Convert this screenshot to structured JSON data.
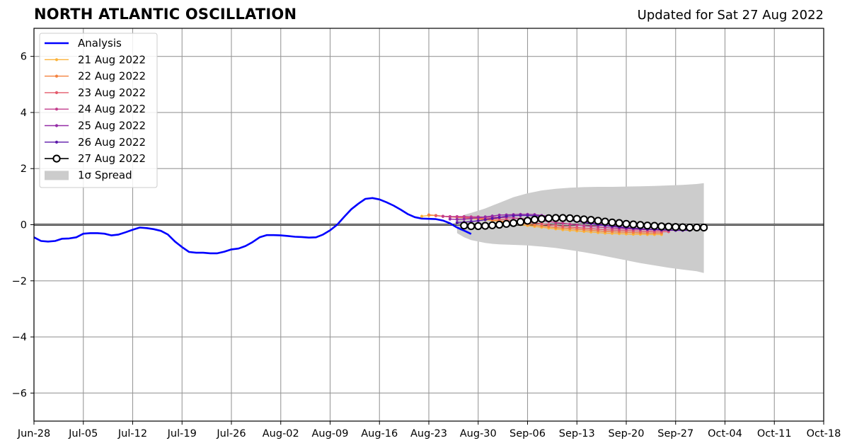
{
  "header": {
    "title": "NORTH ATLANTIC OSCILLATION",
    "subtitle": "Updated for Sat 27 Aug 2022"
  },
  "chart_data": {
    "type": "line",
    "title": "NORTH ATLANTIC OSCILLATION",
    "subtitle": "Updated for Sat 27 Aug 2022",
    "xlabel": "",
    "ylabel": "",
    "x_unit": "days since Jun-28",
    "xlim": [
      0,
      112
    ],
    "ylim": [
      -7,
      7
    ],
    "grid": true,
    "legend_position": "top-left",
    "x_ticks": [
      {
        "x": 0,
        "label": "Jun-28"
      },
      {
        "x": 7,
        "label": "Jul-05"
      },
      {
        "x": 14,
        "label": "Jul-12"
      },
      {
        "x": 21,
        "label": "Jul-19"
      },
      {
        "x": 28,
        "label": "Jul-26"
      },
      {
        "x": 35,
        "label": "Aug-02"
      },
      {
        "x": 42,
        "label": "Aug-09"
      },
      {
        "x": 49,
        "label": "Aug-16"
      },
      {
        "x": 56,
        "label": "Aug-23"
      },
      {
        "x": 63,
        "label": "Aug-30"
      },
      {
        "x": 70,
        "label": "Sep-06"
      },
      {
        "x": 77,
        "label": "Sep-13"
      },
      {
        "x": 84,
        "label": "Sep-20"
      },
      {
        "x": 91,
        "label": "Sep-27"
      },
      {
        "x": 98,
        "label": "Oct-04"
      },
      {
        "x": 105,
        "label": "Oct-11"
      },
      {
        "x": 112,
        "label": "Oct-18"
      }
    ],
    "y_ticks": [
      {
        "y": 6,
        "label": "6"
      },
      {
        "y": 4,
        "label": "4"
      },
      {
        "y": 2,
        "label": "2"
      },
      {
        "y": 0,
        "label": "0"
      },
      {
        "y": -2,
        "label": "−2"
      },
      {
        "y": -4,
        "label": "−4"
      },
      {
        "y": -6,
        "label": "−6"
      }
    ],
    "analysis": {
      "name": "Analysis",
      "color": "#0000ff",
      "x": [
        0,
        1,
        2,
        3,
        4,
        5,
        6,
        7,
        8,
        9,
        10,
        11,
        12,
        13,
        14,
        15,
        16,
        17,
        18,
        19,
        20,
        21,
        22,
        23,
        24,
        25,
        26,
        27,
        28,
        29,
        30,
        31,
        32,
        33,
        34,
        35,
        36,
        37,
        38,
        39,
        40,
        41,
        42,
        43,
        44,
        45,
        46,
        47,
        48,
        49,
        50,
        51,
        52,
        53,
        54,
        55,
        56,
        57,
        58,
        59,
        60
      ],
      "y": [
        -0.45,
        -0.58,
        -0.6,
        -0.58,
        -0.5,
        -0.49,
        -0.45,
        -0.32,
        -0.3,
        -0.3,
        -0.32,
        -0.38,
        -0.35,
        -0.27,
        -0.18,
        -0.1,
        -0.12,
        -0.16,
        -0.22,
        -0.35,
        -0.6,
        -0.8,
        -0.97,
        -1.0,
        -1.0,
        -1.02,
        -1.02,
        -0.96,
        -0.88,
        -0.85,
        -0.76,
        -0.62,
        -0.45,
        -0.37,
        -0.37,
        -0.38,
        -0.4,
        -0.43,
        -0.44,
        -0.46,
        -0.45,
        -0.35,
        -0.2,
        0.0,
        0.28,
        0.55,
        0.75,
        0.92,
        0.95,
        0.9,
        0.8,
        0.68,
        0.54,
        0.38,
        0.27,
        0.22,
        0.21,
        0.2,
        0.15,
        0.05,
        -0.1
      ]
    },
    "analysis_tail": {
      "x": [
        60,
        60.3,
        60.6,
        61,
        61.5,
        62
      ],
      "y": [
        -0.1,
        -0.13,
        -0.17,
        -0.21,
        -0.27,
        -0.33
      ]
    },
    "spread": {
      "name": "1σ Spread",
      "color": "#cccccc",
      "x": [
        60,
        61,
        62,
        63,
        64,
        65,
        66,
        67,
        68,
        69,
        70,
        72,
        74,
        76,
        78,
        80,
        82,
        84,
        86,
        88,
        90,
        92,
        94,
        95
      ],
      "upper": [
        0.2,
        0.35,
        0.42,
        0.5,
        0.58,
        0.68,
        0.78,
        0.88,
        0.98,
        1.05,
        1.12,
        1.22,
        1.28,
        1.32,
        1.34,
        1.35,
        1.35,
        1.36,
        1.37,
        1.38,
        1.4,
        1.42,
        1.45,
        1.48
      ],
      "lower": [
        -0.3,
        -0.45,
        -0.55,
        -0.6,
        -0.65,
        -0.68,
        -0.7,
        -0.71,
        -0.72,
        -0.73,
        -0.74,
        -0.78,
        -0.83,
        -0.9,
        -0.98,
        -1.07,
        -1.17,
        -1.27,
        -1.37,
        -1.45,
        -1.53,
        -1.6,
        -1.66,
        -1.72
      ]
    },
    "series": [
      {
        "name": "21 Aug 2022",
        "color": "#fbb33b",
        "x": [
          55,
          56,
          57,
          58,
          59,
          60,
          61,
          62,
          63,
          64,
          65,
          66,
          67,
          68,
          69,
          70,
          71,
          72,
          73,
          74,
          75,
          76,
          77,
          78,
          79,
          80,
          81,
          82,
          83,
          84,
          85,
          86,
          87,
          88,
          89
        ],
        "y": [
          0.3,
          0.33,
          0.33,
          0.3,
          0.28,
          0.26,
          0.25,
          0.23,
          0.2,
          0.18,
          0.15,
          0.12,
          0.08,
          0.04,
          0.0,
          -0.03,
          -0.06,
          -0.09,
          -0.12,
          -0.15,
          -0.18,
          -0.2,
          -0.22,
          -0.24,
          -0.26,
          -0.28,
          -0.3,
          -0.31,
          -0.32,
          -0.33,
          -0.34,
          -0.34,
          -0.35,
          -0.35,
          -0.35
        ]
      },
      {
        "name": "22 Aug 2022",
        "color": "#f4813e",
        "x": [
          56,
          57,
          58,
          59,
          60,
          61,
          62,
          63,
          64,
          65,
          66,
          67,
          68,
          69,
          70,
          71,
          72,
          73,
          74,
          75,
          76,
          77,
          78,
          79,
          80,
          81,
          82,
          83,
          84,
          85,
          86,
          87,
          88,
          89
        ],
        "y": [
          0.35,
          0.33,
          0.3,
          0.28,
          0.27,
          0.26,
          0.24,
          0.22,
          0.2,
          0.17,
          0.14,
          0.11,
          0.08,
          0.05,
          0.02,
          -0.01,
          -0.04,
          -0.07,
          -0.1,
          -0.12,
          -0.14,
          -0.16,
          -0.18,
          -0.2,
          -0.22,
          -0.24,
          -0.25,
          -0.26,
          -0.27,
          -0.28,
          -0.29,
          -0.3,
          -0.3,
          -0.3
        ]
      },
      {
        "name": "23 Aug 2022",
        "color": "#e45a6b",
        "x": [
          57,
          58,
          59,
          60,
          61,
          62,
          63,
          64,
          65,
          66,
          67,
          68,
          69,
          70,
          71,
          72,
          73,
          74,
          75,
          76,
          77,
          78,
          79,
          80,
          81,
          82,
          83,
          84,
          85,
          86,
          87,
          88,
          89,
          90
        ],
        "y": [
          0.32,
          0.3,
          0.28,
          0.27,
          0.26,
          0.25,
          0.24,
          0.23,
          0.22,
          0.2,
          0.18,
          0.15,
          0.12,
          0.09,
          0.06,
          0.03,
          0.0,
          -0.03,
          -0.06,
          -0.08,
          -0.1,
          -0.12,
          -0.14,
          -0.16,
          -0.18,
          -0.19,
          -0.2,
          -0.21,
          -0.22,
          -0.23,
          -0.24,
          -0.25,
          -0.25,
          -0.25
        ]
      },
      {
        "name": "24 Aug 2022",
        "color": "#c23c8c",
        "x": [
          58,
          59,
          60,
          61,
          62,
          63,
          64,
          65,
          66,
          67,
          68,
          69,
          70,
          71,
          72,
          73,
          74,
          75,
          76,
          77,
          78,
          79,
          80,
          81,
          82,
          83,
          84,
          85,
          86,
          87,
          88,
          89,
          90,
          91
        ],
        "y": [
          0.3,
          0.29,
          0.29,
          0.29,
          0.28,
          0.28,
          0.27,
          0.27,
          0.26,
          0.25,
          0.24,
          0.22,
          0.2,
          0.17,
          0.14,
          0.11,
          0.08,
          0.05,
          0.02,
          -0.01,
          -0.04,
          -0.06,
          -0.08,
          -0.1,
          -0.12,
          -0.14,
          -0.15,
          -0.16,
          -0.17,
          -0.18,
          -0.19,
          -0.2,
          -0.2,
          -0.2
        ]
      },
      {
        "name": "25 Aug 2022",
        "color": "#942ba6",
        "x": [
          59,
          60,
          61,
          62,
          63,
          64,
          65,
          66,
          67,
          68,
          69,
          70,
          71,
          72,
          73,
          74,
          75,
          76,
          77,
          78,
          79,
          80,
          81,
          82,
          83,
          84,
          85,
          86,
          87,
          88,
          89,
          90,
          91,
          92
        ],
        "y": [
          0.2,
          0.19,
          0.2,
          0.22,
          0.25,
          0.28,
          0.31,
          0.34,
          0.35,
          0.36,
          0.37,
          0.37,
          0.36,
          0.33,
          0.3,
          0.26,
          0.22,
          0.18,
          0.14,
          0.1,
          0.06,
          0.02,
          -0.01,
          -0.04,
          -0.07,
          -0.1,
          -0.12,
          -0.14,
          -0.16,
          -0.17,
          -0.18,
          -0.19,
          -0.2,
          -0.2
        ]
      },
      {
        "name": "26 Aug 2022",
        "color": "#5b17a8",
        "x": [
          60,
          61,
          62,
          63,
          64,
          65,
          66,
          67,
          68,
          69,
          70,
          71,
          72,
          73,
          74,
          75,
          76,
          77,
          78,
          79,
          80,
          81,
          82,
          83,
          84,
          85,
          86,
          87,
          88,
          89,
          90,
          91,
          92,
          93
        ],
        "y": [
          0.08,
          0.09,
          0.11,
          0.14,
          0.18,
          0.22,
          0.26,
          0.3,
          0.32,
          0.33,
          0.33,
          0.32,
          0.3,
          0.27,
          0.24,
          0.2,
          0.16,
          0.12,
          0.08,
          0.04,
          0.0,
          -0.03,
          -0.06,
          -0.09,
          -0.11,
          -0.13,
          -0.15,
          -0.16,
          -0.17,
          -0.18,
          -0.19,
          -0.2,
          -0.2,
          -0.2
        ]
      },
      {
        "name": "27 Aug 2022",
        "color": "#000000",
        "marker": "open-circle",
        "x": [
          61,
          62,
          63,
          64,
          65,
          66,
          67,
          68,
          69,
          70,
          71,
          72,
          73,
          74,
          75,
          76,
          77,
          78,
          79,
          80,
          81,
          82,
          83,
          84,
          85,
          86,
          87,
          88,
          89,
          90,
          91,
          92,
          93,
          94,
          95
        ],
        "y": [
          -0.03,
          -0.05,
          -0.05,
          -0.04,
          -0.02,
          0.0,
          0.03,
          0.06,
          0.1,
          0.14,
          0.18,
          0.21,
          0.23,
          0.24,
          0.24,
          0.23,
          0.21,
          0.19,
          0.17,
          0.14,
          0.11,
          0.08,
          0.06,
          0.03,
          0.01,
          -0.01,
          -0.03,
          -0.04,
          -0.06,
          -0.07,
          -0.08,
          -0.09,
          -0.1,
          -0.1,
          -0.1
        ]
      }
    ]
  }
}
